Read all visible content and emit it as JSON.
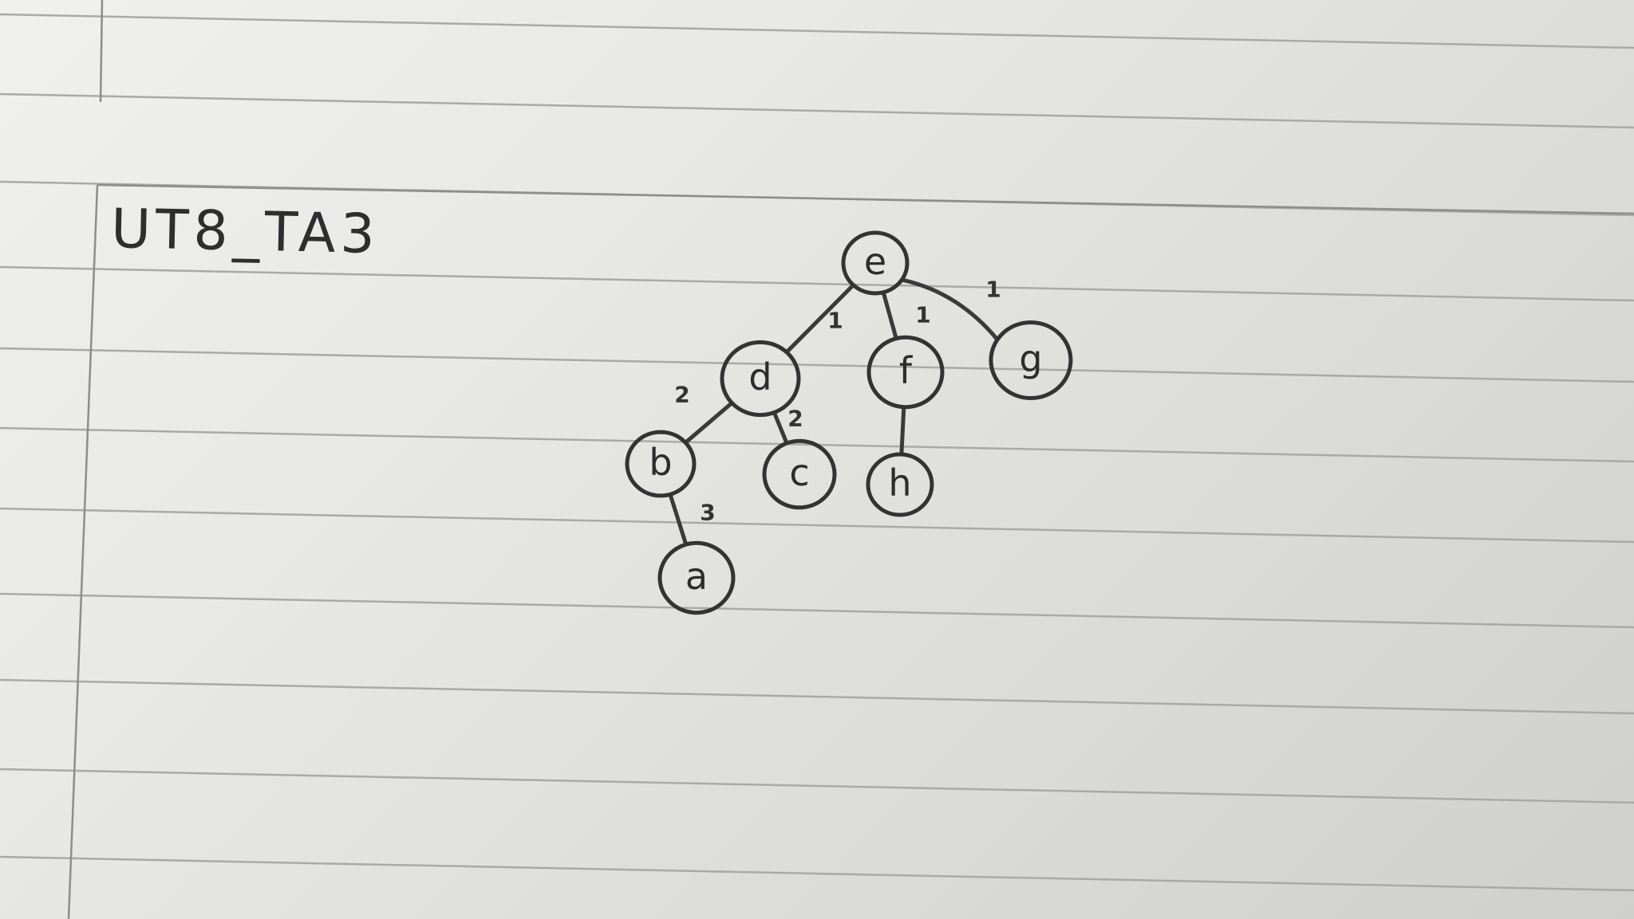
{
  "title": "UT8_TA3",
  "graph": {
    "nodes": [
      {
        "id": "e",
        "label": "e"
      },
      {
        "id": "d",
        "label": "d"
      },
      {
        "id": "f",
        "label": "f"
      },
      {
        "id": "g",
        "label": "g"
      },
      {
        "id": "b",
        "label": "b"
      },
      {
        "id": "c",
        "label": "c"
      },
      {
        "id": "h",
        "label": "h"
      },
      {
        "id": "a",
        "label": "a"
      }
    ],
    "edges": [
      {
        "from": "e",
        "to": "d",
        "weight": "1"
      },
      {
        "from": "e",
        "to": "f",
        "weight": "1"
      },
      {
        "from": "e",
        "to": "g",
        "weight": "1"
      },
      {
        "from": "d",
        "to": "b",
        "weight": "2"
      },
      {
        "from": "d",
        "to": "c",
        "weight": "2"
      },
      {
        "from": "b",
        "to": "a",
        "weight": "3"
      },
      {
        "from": "f",
        "to": "h",
        "weight": ""
      }
    ]
  },
  "colors": {
    "paper": "#ececea",
    "ink": "#333333",
    "rule_lines": "#a9a9a6"
  }
}
